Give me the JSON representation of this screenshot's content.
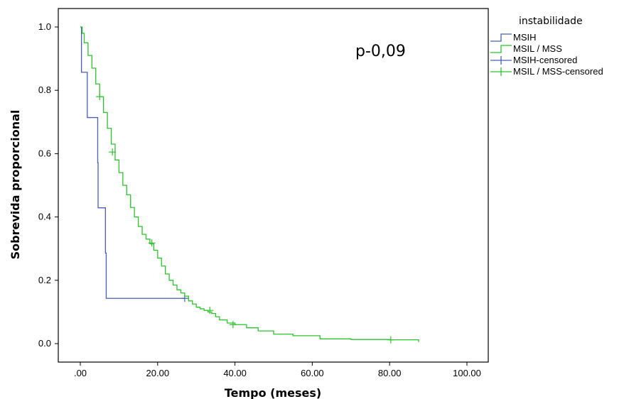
{
  "chart_data": {
    "type": "line",
    "subtype": "kaplan-meier",
    "xlabel": "Tempo (meses)",
    "ylabel": "Sobrevida proporcional",
    "xlim": [
      0,
      100
    ],
    "ylim": [
      0,
      1
    ],
    "x_ticks": [
      0,
      20,
      40,
      60,
      80,
      100
    ],
    "x_tick_labels": [
      ".00",
      "20.00",
      "40.00",
      "60.00",
      "80.00",
      "100.00"
    ],
    "y_ticks": [
      0,
      0.2,
      0.4,
      0.6,
      0.8,
      1.0
    ],
    "y_tick_labels": [
      "0.0",
      "0.2",
      "0.4",
      "0.6",
      "0.8",
      "1.0"
    ],
    "grid": false,
    "annotation": "p-0,09",
    "legend": {
      "title": "instabilidade",
      "position": "top-right-outside",
      "entries": [
        {
          "label": "MSIH",
          "style": "step",
          "color": "#4a5fb4"
        },
        {
          "label": "MSIL / MSS",
          "style": "step",
          "color": "#2ec12e"
        },
        {
          "label": "MSIH-censored",
          "style": "censor",
          "color": "#4a5fb4"
        },
        {
          "label": "MSIL / MSS-censored",
          "style": "censor",
          "color": "#2ec12e"
        }
      ]
    },
    "series": [
      {
        "name": "MSIH",
        "color": "#4a5fb4",
        "x": [
          0,
          0.3,
          1.8,
          4.5,
          4.6,
          5.0,
          6.5,
          6.7,
          27.0
        ],
        "y": [
          1.0,
          0.857,
          0.714,
          0.571,
          0.429,
          0.429,
          0.286,
          0.143,
          0.143
        ],
        "censored": [
          {
            "x": 27.0,
            "y": 0.143
          }
        ]
      },
      {
        "name": "MSIL / MSS",
        "color": "#2ec12e",
        "x": [
          0,
          0.5,
          1,
          2,
          3,
          4,
          5,
          6,
          7,
          8,
          9,
          10,
          11,
          12,
          13,
          14,
          15,
          16,
          17,
          18,
          19,
          20,
          21,
          22,
          23,
          24,
          25,
          26,
          27,
          28,
          29,
          30,
          31,
          32,
          33,
          34,
          35,
          36,
          38,
          40,
          43,
          46,
          50,
          55,
          62,
          70,
          80,
          87.5
        ],
        "y": [
          1.0,
          0.98,
          0.95,
          0.91,
          0.87,
          0.82,
          0.78,
          0.73,
          0.68,
          0.63,
          0.58,
          0.54,
          0.5,
          0.47,
          0.43,
          0.4,
          0.37,
          0.345,
          0.33,
          0.315,
          0.295,
          0.27,
          0.245,
          0.22,
          0.2,
          0.185,
          0.17,
          0.16,
          0.15,
          0.135,
          0.125,
          0.115,
          0.11,
          0.105,
          0.1,
          0.095,
          0.085,
          0.075,
          0.065,
          0.06,
          0.05,
          0.04,
          0.03,
          0.025,
          0.015,
          0.013,
          0.012,
          0.005
        ],
        "censored": [
          {
            "x": 5.0,
            "y": 0.78
          },
          {
            "x": 8.3,
            "y": 0.605
          },
          {
            "x": 18.5,
            "y": 0.318
          },
          {
            "x": 33.5,
            "y": 0.105
          },
          {
            "x": 39.5,
            "y": 0.06
          },
          {
            "x": 80.3,
            "y": 0.012
          }
        ]
      }
    ]
  }
}
